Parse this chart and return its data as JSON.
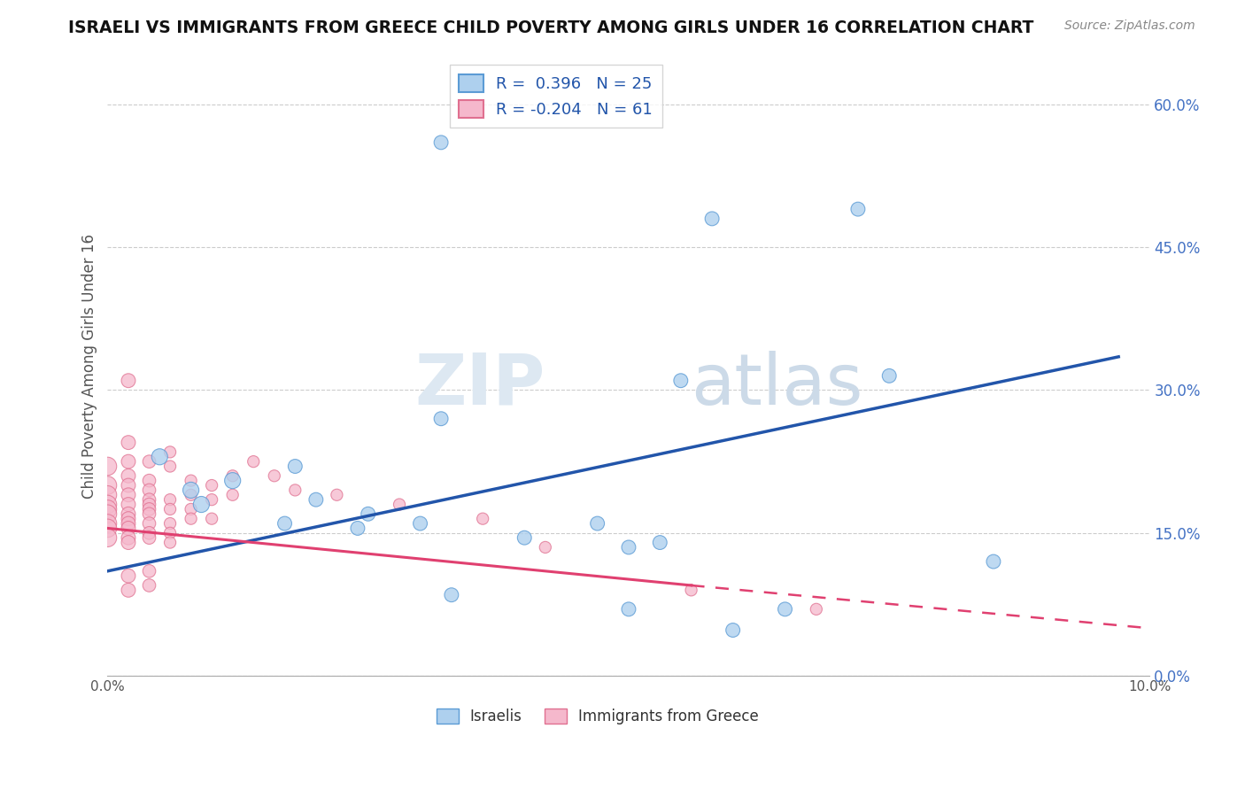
{
  "title": "ISRAELI VS IMMIGRANTS FROM GREECE CHILD POVERTY AMONG GIRLS UNDER 16 CORRELATION CHART",
  "source": "Source: ZipAtlas.com",
  "ylabel": "Child Poverty Among Girls Under 16",
  "xlim": [
    0.0,
    0.1
  ],
  "ylim": [
    0.0,
    0.65
  ],
  "yticks": [
    0.0,
    0.15,
    0.3,
    0.45,
    0.6
  ],
  "ytick_labels": [
    "0.0%",
    "15.0%",
    "30.0%",
    "45.0%",
    "60.0%"
  ],
  "xticks": [
    0.0,
    0.025,
    0.05,
    0.075,
    0.1
  ],
  "xtick_labels": [
    "0.0%",
    "",
    "",
    "",
    "10.0%"
  ],
  "israelis_R": 0.396,
  "israelis_N": 25,
  "greece_R": -0.204,
  "greece_N": 61,
  "israeli_color": "#aed0ee",
  "greek_color": "#f5b8cc",
  "israeli_edge_color": "#5b9bd5",
  "greek_edge_color": "#e07090",
  "trend_israeli_color": "#2255aa",
  "trend_greek_color": "#e04070",
  "watermark_zip": "ZIP",
  "watermark_atlas": "atlas",
  "israelis_scatter": [
    [
      0.032,
      0.56
    ],
    [
      0.058,
      0.48
    ],
    [
      0.072,
      0.49
    ],
    [
      0.032,
      0.27
    ],
    [
      0.005,
      0.23
    ],
    [
      0.018,
      0.22
    ],
    [
      0.012,
      0.205
    ],
    [
      0.008,
      0.195
    ],
    [
      0.02,
      0.185
    ],
    [
      0.009,
      0.18
    ],
    [
      0.025,
      0.17
    ],
    [
      0.03,
      0.16
    ],
    [
      0.017,
      0.16
    ],
    [
      0.047,
      0.16
    ],
    [
      0.024,
      0.155
    ],
    [
      0.04,
      0.145
    ],
    [
      0.053,
      0.14
    ],
    [
      0.05,
      0.135
    ],
    [
      0.033,
      0.085
    ],
    [
      0.05,
      0.07
    ],
    [
      0.065,
      0.07
    ],
    [
      0.06,
      0.048
    ],
    [
      0.075,
      0.315
    ],
    [
      0.085,
      0.12
    ],
    [
      0.055,
      0.31
    ]
  ],
  "greeks_scatter": [
    [
      0.0,
      0.22
    ],
    [
      0.0,
      0.2
    ],
    [
      0.0,
      0.19
    ],
    [
      0.0,
      0.18
    ],
    [
      0.0,
      0.175
    ],
    [
      0.0,
      0.17
    ],
    [
      0.0,
      0.16
    ],
    [
      0.0,
      0.155
    ],
    [
      0.0,
      0.145
    ],
    [
      0.002,
      0.31
    ],
    [
      0.002,
      0.245
    ],
    [
      0.002,
      0.225
    ],
    [
      0.002,
      0.21
    ],
    [
      0.002,
      0.2
    ],
    [
      0.002,
      0.19
    ],
    [
      0.002,
      0.18
    ],
    [
      0.002,
      0.17
    ],
    [
      0.002,
      0.165
    ],
    [
      0.002,
      0.16
    ],
    [
      0.002,
      0.155
    ],
    [
      0.002,
      0.145
    ],
    [
      0.002,
      0.14
    ],
    [
      0.002,
      0.105
    ],
    [
      0.002,
      0.09
    ],
    [
      0.004,
      0.225
    ],
    [
      0.004,
      0.205
    ],
    [
      0.004,
      0.195
    ],
    [
      0.004,
      0.185
    ],
    [
      0.004,
      0.18
    ],
    [
      0.004,
      0.175
    ],
    [
      0.004,
      0.17
    ],
    [
      0.004,
      0.16
    ],
    [
      0.004,
      0.15
    ],
    [
      0.004,
      0.145
    ],
    [
      0.004,
      0.11
    ],
    [
      0.004,
      0.095
    ],
    [
      0.006,
      0.235
    ],
    [
      0.006,
      0.22
    ],
    [
      0.006,
      0.185
    ],
    [
      0.006,
      0.175
    ],
    [
      0.006,
      0.16
    ],
    [
      0.006,
      0.15
    ],
    [
      0.006,
      0.14
    ],
    [
      0.008,
      0.205
    ],
    [
      0.008,
      0.19
    ],
    [
      0.008,
      0.175
    ],
    [
      0.008,
      0.165
    ],
    [
      0.01,
      0.2
    ],
    [
      0.01,
      0.185
    ],
    [
      0.01,
      0.165
    ],
    [
      0.012,
      0.21
    ],
    [
      0.012,
      0.19
    ],
    [
      0.014,
      0.225
    ],
    [
      0.016,
      0.21
    ],
    [
      0.018,
      0.195
    ],
    [
      0.022,
      0.19
    ],
    [
      0.028,
      0.18
    ],
    [
      0.036,
      0.165
    ],
    [
      0.042,
      0.135
    ],
    [
      0.056,
      0.09
    ],
    [
      0.068,
      0.07
    ]
  ],
  "trend_isr_x0": 0.0,
  "trend_isr_y0": 0.11,
  "trend_isr_x1": 0.097,
  "trend_isr_y1": 0.335,
  "trend_grk_solid_x0": 0.0,
  "trend_grk_solid_y0": 0.155,
  "trend_grk_solid_x1": 0.056,
  "trend_grk_solid_y1": 0.095,
  "trend_grk_dash_x0": 0.056,
  "trend_grk_dash_y0": 0.095,
  "trend_grk_dash_x1": 0.1,
  "trend_grk_dash_y1": 0.05
}
